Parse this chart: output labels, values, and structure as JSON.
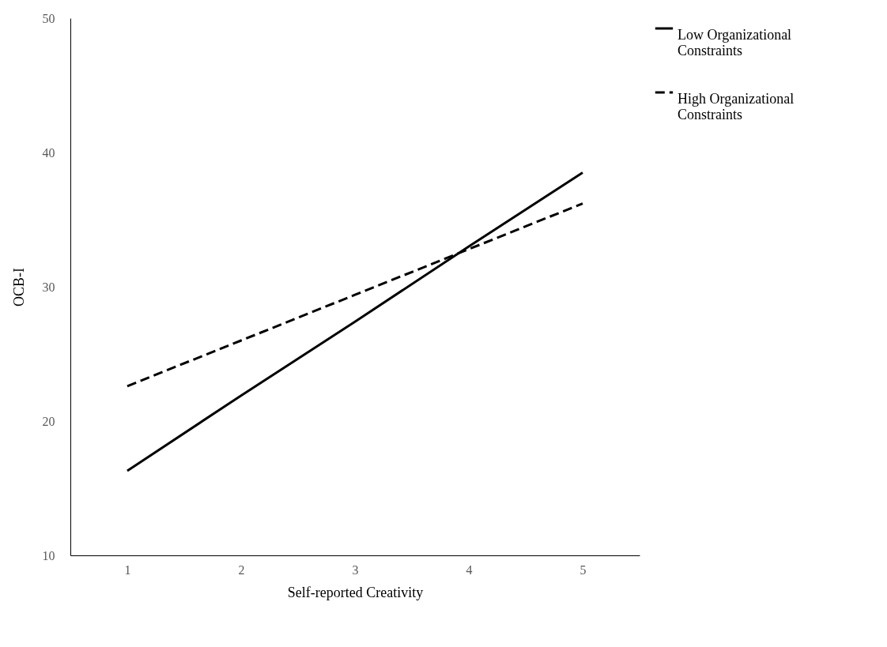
{
  "chart_data": {
    "type": "line",
    "xlabel": "Self-reported Creativity",
    "ylabel": "OCB-I",
    "categories": [
      "1",
      "2",
      "3",
      "4",
      "5"
    ],
    "series": [
      {
        "name": "Low Organizational Constraints",
        "color": "#000000",
        "line_style": "solid",
        "values": [
          16.3,
          21.9,
          27.4,
          33.0,
          38.5
        ]
      },
      {
        "name": "High Organizational Constraints",
        "color": "#000000",
        "line_style": "dashed",
        "values": [
          22.6,
          26.0,
          29.4,
          32.8,
          36.2
        ]
      }
    ],
    "ylim": [
      10,
      50
    ],
    "yticks": [
      10,
      20,
      30,
      40,
      50
    ],
    "grid": false,
    "legend": "top right",
    "marker": "none"
  }
}
